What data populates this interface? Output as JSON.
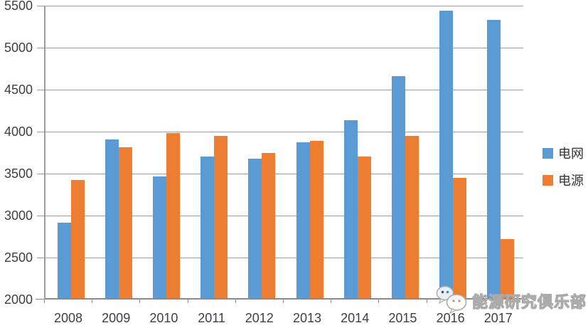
{
  "chart_data": {
    "type": "bar",
    "title": "",
    "xlabel": "",
    "ylabel": "",
    "categories": [
      "2008",
      "2009",
      "2010",
      "2011",
      "2012",
      "2013",
      "2014",
      "2015",
      "2016",
      "2017"
    ],
    "series": [
      {
        "name": "电网",
        "color": "#5B9BD5",
        "values": [
          2895,
          3890,
          3450,
          3690,
          3660,
          3856,
          4118,
          4640,
          5426,
          5315
        ]
      },
      {
        "name": "电源",
        "color": "#ED7D31",
        "values": [
          3410,
          3800,
          3970,
          3930,
          3730,
          3870,
          3690,
          3936,
          3430,
          2700
        ]
      }
    ],
    "ylim": [
      2000,
      5500
    ],
    "yticks": [
      2000,
      2500,
      3000,
      3500,
      4000,
      4500,
      5000,
      5500
    ],
    "grid": true,
    "legend_position": "right"
  },
  "watermark": {
    "text": "能源研究俱乐部",
    "icon": "wechat-logo-icon"
  },
  "colors": {
    "grid_line": "#9B9B9B",
    "axis_line": "#8A8A8A",
    "tick_text": "#3F3F3F",
    "watermark_gray": "#ABABAB",
    "background": "#FFFFFF"
  }
}
